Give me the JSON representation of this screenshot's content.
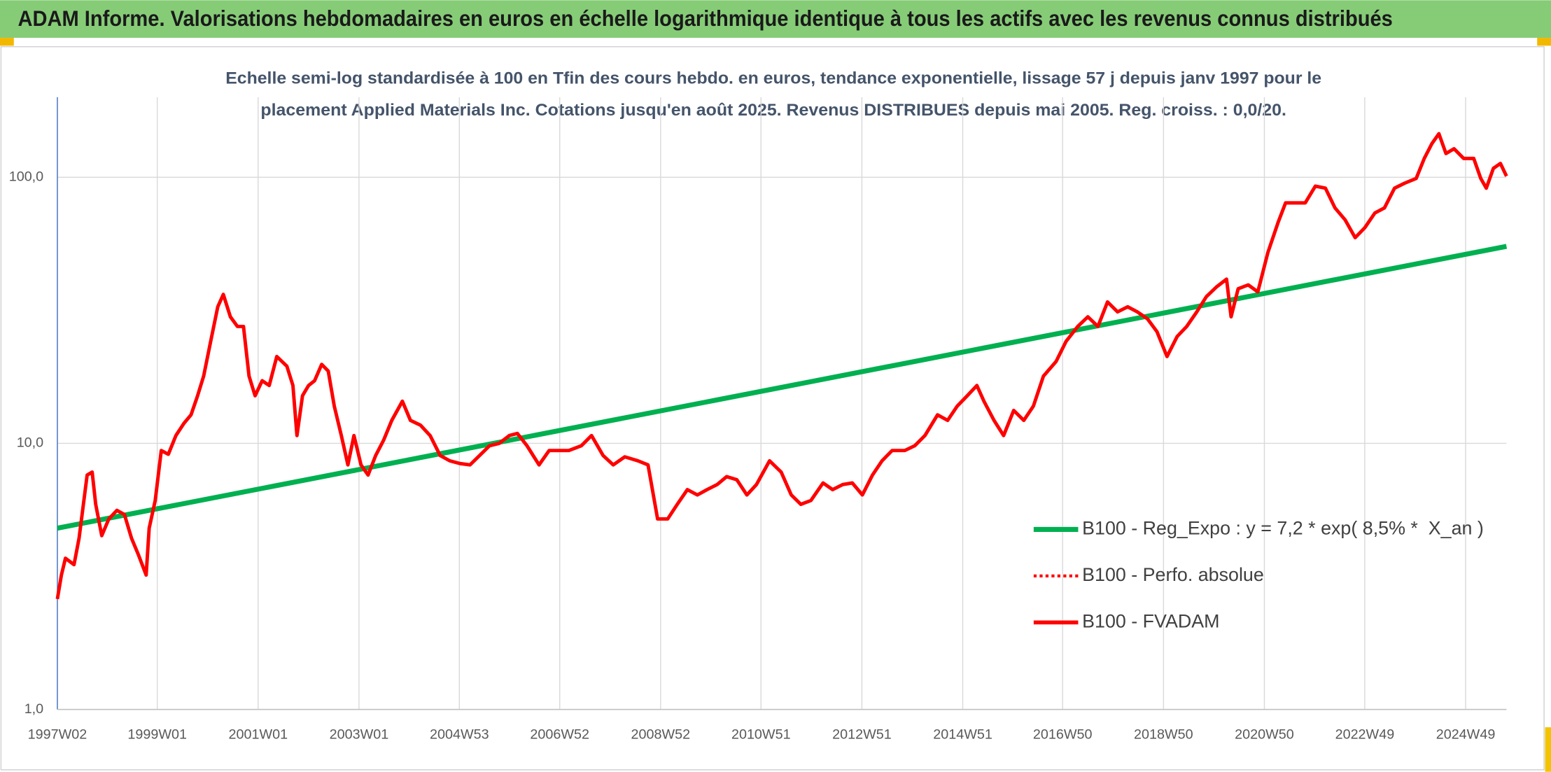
{
  "chart_data": {
    "type": "line",
    "title": "ADAM Informe. Valorisations hebdomadaires en euros en échelle logarithmique identique à tous les actifs avec les revenus connus distribués",
    "subtitle": [
      "Echelle semi-log standardisée à 100 en Tfin des cours hebdo. en euros, tendance exponentielle, lissage 57 j depuis janv 1997 pour le",
      "placement Applied Materials Inc. Cotations jusqu'en août 2025. Revenus DISTRIBUES depuis mai 2005. Reg. croiss. : 0,0/20."
    ],
    "log_y": true,
    "grid": true,
    "legend": "center right",
    "xlim": [
      1997.02,
      2025.75
    ],
    "xticks": [
      {
        "value": 1997.02,
        "label": "1997W02"
      },
      {
        "value": 1999.0,
        "label": "1999W01"
      },
      {
        "value": 2001.0,
        "label": "2001W01"
      },
      {
        "value": 2003.0,
        "label": "2003W01"
      },
      {
        "value": 2004.99,
        "label": "2004W53"
      },
      {
        "value": 2006.98,
        "label": "2006W52"
      },
      {
        "value": 2008.98,
        "label": "2008W52"
      },
      {
        "value": 2010.97,
        "label": "2010W51"
      },
      {
        "value": 2012.97,
        "label": "2012W51"
      },
      {
        "value": 2014.97,
        "label": "2014W51"
      },
      {
        "value": 2016.95,
        "label": "2016W50"
      },
      {
        "value": 2018.95,
        "label": "2018W50"
      },
      {
        "value": 2020.95,
        "label": "2020W50"
      },
      {
        "value": 2022.94,
        "label": "2022W49"
      },
      {
        "value": 2024.94,
        "label": "2024W49"
      }
    ],
    "ylim": [
      1,
      200
    ],
    "yticks": [
      {
        "value": 1,
        "label": "1,0"
      },
      {
        "value": 10,
        "label": "10,0"
      },
      {
        "value": 100,
        "label": "100,0"
      }
    ],
    "series": [
      {
        "name": "B100 - Reg_Expo : y = 7,2 * exp( 8,5% *  X_an )",
        "color": "#00b050",
        "style": "solid",
        "x": [
          1997.02,
          2025.75
        ],
        "values": [
          4.8,
          55
        ]
      },
      {
        "name": "B100 - Perfo. absolue",
        "color": "#ff0000",
        "style": "dotted"
      },
      {
        "name": "B100 - FVADAM",
        "color": "#ff0000",
        "style": "solid",
        "x": [
          1997.02,
          1997.1,
          1997.18,
          1997.35,
          1997.45,
          1997.61,
          1997.71,
          1997.78,
          1997.9,
          1998.04,
          1998.2,
          1998.35,
          1998.49,
          1998.63,
          1998.78,
          1998.84,
          1998.96,
          1999.08,
          1999.22,
          1999.37,
          1999.53,
          1999.67,
          1999.8,
          1999.92,
          2000.06,
          2000.2,
          2000.31,
          2000.45,
          2000.59,
          2000.71,
          2000.82,
          2000.94,
          2001.08,
          2001.22,
          2001.37,
          2001.57,
          2001.69,
          2001.77,
          2001.88,
          2002.0,
          2002.12,
          2002.26,
          2002.39,
          2002.51,
          2002.65,
          2002.78,
          2002.9,
          2003.04,
          2003.18,
          2003.33,
          2003.49,
          2003.65,
          2003.86,
          2004.02,
          2004.22,
          2004.41,
          2004.61,
          2004.8,
          2005.0,
          2005.2,
          2005.39,
          2005.59,
          2005.78,
          2005.98,
          2006.14,
          2006.33,
          2006.57,
          2006.77,
          2006.96,
          2007.16,
          2007.41,
          2007.61,
          2007.84,
          2008.04,
          2008.27,
          2008.53,
          2008.73,
          2008.92,
          2009.12,
          2009.31,
          2009.51,
          2009.71,
          2009.9,
          2010.1,
          2010.29,
          2010.49,
          2010.69,
          2010.88,
          2011.14,
          2011.37,
          2011.57,
          2011.76,
          2011.96,
          2012.2,
          2012.39,
          2012.59,
          2012.78,
          2012.98,
          2013.18,
          2013.37,
          2013.57,
          2013.82,
          2014.02,
          2014.22,
          2014.47,
          2014.67,
          2014.86,
          2015.06,
          2015.25,
          2015.39,
          2015.59,
          2015.78,
          2015.98,
          2016.18,
          2016.37,
          2016.57,
          2016.82,
          2017.02,
          2017.25,
          2017.45,
          2017.65,
          2017.84,
          2018.04,
          2018.24,
          2018.43,
          2018.63,
          2018.82,
          2019.02,
          2019.22,
          2019.41,
          2019.61,
          2019.8,
          2020.0,
          2020.2,
          2020.29,
          2020.43,
          2020.63,
          2020.82,
          2021.02,
          2021.22,
          2021.37,
          2021.57,
          2021.76,
          2021.96,
          2022.16,
          2022.35,
          2022.55,
          2022.75,
          2022.94,
          2023.14,
          2023.33,
          2023.53,
          2023.73,
          2023.96,
          2024.12,
          2024.27,
          2024.41,
          2024.55,
          2024.71,
          2024.9,
          2025.1,
          2025.24,
          2025.35,
          2025.49,
          2025.63,
          2025.75
        ],
        "values": [
          2.6,
          3.2,
          3.7,
          3.5,
          4.4,
          7.6,
          7.8,
          5.9,
          4.5,
          5.2,
          5.6,
          5.4,
          4.4,
          3.8,
          3.2,
          4.8,
          6.1,
          9.4,
          9.1,
          10.7,
          11.9,
          12.8,
          15.1,
          17.9,
          24.2,
          32.6,
          36.3,
          29.9,
          27.5,
          27.5,
          17.9,
          15.1,
          17.2,
          16.5,
          21.2,
          19.5,
          16.5,
          10.7,
          15.1,
          16.5,
          17.2,
          19.8,
          18.7,
          13.8,
          10.7,
          8.3,
          10.7,
          8.3,
          7.6,
          9.0,
          10.3,
          12.2,
          14.4,
          12.2,
          11.7,
          10.7,
          9.0,
          8.6,
          8.4,
          8.3,
          9.0,
          9.8,
          10.0,
          10.7,
          10.9,
          9.8,
          8.3,
          9.4,
          9.4,
          9.4,
          9.8,
          10.7,
          9.0,
          8.3,
          8.9,
          8.6,
          8.3,
          5.2,
          5.2,
          5.9,
          6.7,
          6.4,
          6.7,
          7.0,
          7.5,
          7.3,
          6.4,
          7.0,
          8.6,
          7.8,
          6.4,
          5.9,
          6.1,
          7.1,
          6.7,
          7.0,
          7.1,
          6.4,
          7.6,
          8.6,
          9.4,
          9.4,
          9.8,
          10.7,
          12.8,
          12.2,
          13.8,
          15.1,
          16.5,
          14.4,
          12.2,
          10.7,
          13.3,
          12.2,
          13.8,
          17.9,
          20.3,
          24.2,
          27.5,
          29.9,
          27.5,
          34.0,
          31.2,
          32.6,
          31.2,
          29.4,
          26.3,
          21.2,
          25.2,
          27.5,
          31.2,
          35.6,
          38.7,
          41.4,
          29.9,
          38.1,
          39.4,
          37.1,
          52.2,
          67.5,
          80.1,
          80.1,
          80.1,
          92.6,
          91,
          76.7,
          69.2,
          59.3,
          64.6,
          73.4,
          76.7,
          91,
          95,
          99,
          117.7,
          133.7,
          145.8,
          122.8,
          128,
          117.7,
          117.7,
          99,
          91,
          108,
          112.7,
          101
        ]
      }
    ]
  }
}
